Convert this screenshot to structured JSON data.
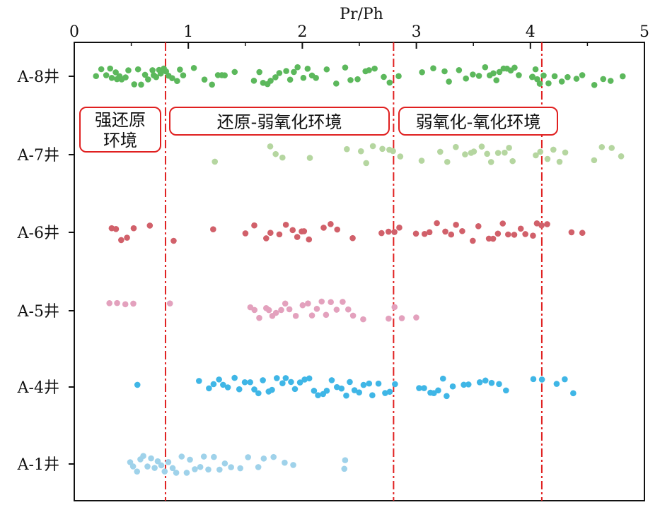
{
  "chart_data": {
    "type": "scatter",
    "xlabel": "Pr/Ph",
    "xlim": [
      0,
      5
    ],
    "x_ticks": [
      "0",
      "1",
      "2",
      "3",
      "4",
      "5"
    ],
    "categories": [
      "A-8井",
      "A-7井",
      "A-6井",
      "A-5井",
      "A-4井",
      "A-1井"
    ],
    "thresholds": [
      0.8,
      2.8,
      4.1
    ],
    "zones": [
      {
        "label_lines": [
          "强还原",
          "环境"
        ]
      },
      {
        "label_lines": [
          "还原-弱氧化环境"
        ]
      },
      {
        "label_lines": [
          "弱氧化-氧化环境"
        ]
      }
    ],
    "colors": {
      "A-8井": "#5cb85c",
      "A-7井": "#b5d6a0",
      "A-6井": "#d1606a",
      "A-5井": "#e3a1bd",
      "A-4井": "#3fb6e6",
      "A-1井": "#9fd2ea",
      "threshold": "#e02020",
      "zone_box": "#e02020",
      "axis": "#111111"
    },
    "series": [
      {
        "name": "A-8井",
        "values": [
          0.19,
          0.24,
          0.28,
          0.31,
          0.33,
          0.36,
          0.38,
          0.4,
          0.42,
          0.45,
          0.48,
          0.52,
          0.56,
          0.59,
          0.62,
          0.65,
          0.68,
          0.7,
          0.72,
          0.74,
          0.76,
          0.78,
          0.8,
          0.83,
          0.86,
          0.9,
          0.93,
          0.96,
          1.05,
          1.14,
          1.21,
          1.26,
          1.29,
          1.32,
          1.41,
          1.58,
          1.62,
          1.65,
          1.69,
          1.72,
          1.77,
          1.8,
          1.86,
          1.89,
          1.92,
          1.96,
          2.01,
          2.04,
          2.08,
          2.12,
          2.21,
          2.3,
          2.38,
          2.42,
          2.48,
          2.55,
          2.59,
          2.64,
          2.71,
          2.77,
          2.85,
          3.05,
          3.15,
          3.25,
          3.29,
          3.38,
          3.44,
          3.5,
          3.55,
          3.6,
          3.64,
          3.67,
          3.7,
          3.73,
          3.76,
          3.8,
          3.83,
          3.86,
          3.9,
          4.01,
          4.02,
          4.04,
          4.06,
          4.08,
          4.11,
          4.16,
          4.21,
          4.27,
          4.32,
          4.4,
          4.46,
          4.56,
          4.64,
          4.7,
          4.81
        ]
      },
      {
        "name": "A-7井",
        "values": [
          1.23,
          1.72,
          1.76,
          1.83,
          2.07,
          2.39,
          2.52,
          2.56,
          2.62,
          2.7,
          2.76,
          2.79,
          2.86,
          3.05,
          3.21,
          3.27,
          3.35,
          3.43,
          3.48,
          3.51,
          3.57,
          3.62,
          3.66,
          3.72,
          3.78,
          3.81,
          3.85,
          4.05,
          4.09,
          4.15,
          4.2,
          4.25,
          4.3,
          4.56,
          4.63,
          4.71,
          4.79
        ]
      },
      {
        "name": "A-6井",
        "values": [
          0.33,
          0.37,
          0.41,
          0.46,
          0.52,
          0.66,
          0.87,
          1.22,
          1.5,
          1.58,
          1.68,
          1.72,
          1.8,
          1.86,
          1.91,
          1.95,
          1.99,
          2.02,
          2.06,
          2.19,
          2.25,
          2.3,
          2.44,
          2.7,
          2.76,
          2.81,
          2.85,
          3.0,
          3.07,
          3.12,
          3.18,
          3.26,
          3.31,
          3.35,
          3.4,
          3.49,
          3.55,
          3.63,
          3.67,
          3.71,
          3.76,
          3.81,
          3.86,
          3.91,
          3.96,
          4.02,
          4.06,
          4.1,
          4.15,
          4.36,
          4.45
        ]
      },
      {
        "name": "A-5井",
        "values": [
          0.31,
          0.38,
          0.45,
          0.52,
          0.84,
          1.54,
          1.58,
          1.62,
          1.68,
          1.71,
          1.74,
          1.77,
          1.81,
          1.85,
          1.89,
          1.94,
          2.0,
          2.05,
          2.09,
          2.13,
          2.17,
          2.21,
          2.25,
          2.3,
          2.35,
          2.4,
          2.45,
          2.53,
          2.76,
          2.81,
          2.87,
          3.0
        ]
      },
      {
        "name": "A-4井",
        "values": [
          0.55,
          1.09,
          1.18,
          1.22,
          1.27,
          1.31,
          1.35,
          1.4,
          1.45,
          1.49,
          1.54,
          1.58,
          1.62,
          1.66,
          1.7,
          1.74,
          1.78,
          1.82,
          1.86,
          1.9,
          1.94,
          1.98,
          2.02,
          2.06,
          2.1,
          2.14,
          2.18,
          2.22,
          2.26,
          2.3,
          2.34,
          2.38,
          2.42,
          2.46,
          2.5,
          2.54,
          2.58,
          2.62,
          2.67,
          2.72,
          2.77,
          2.81,
          3.02,
          3.07,
          3.12,
          3.15,
          3.19,
          3.23,
          3.27,
          3.32,
          3.42,
          3.46,
          3.56,
          3.61,
          3.66,
          3.73,
          3.79,
          4.03,
          4.1,
          4.23,
          4.3,
          4.37
        ]
      },
      {
        "name": "A-1井",
        "values": [
          0.49,
          0.52,
          0.55,
          0.58,
          0.61,
          0.64,
          0.67,
          0.7,
          0.73,
          0.76,
          0.79,
          0.82,
          0.86,
          0.9,
          0.94,
          0.98,
          1.02,
          1.06,
          1.1,
          1.14,
          1.18,
          1.22,
          1.27,
          1.32,
          1.38,
          1.46,
          1.52,
          1.62,
          1.66,
          1.75,
          1.84,
          1.92,
          2.37,
          2.38
        ]
      }
    ]
  }
}
